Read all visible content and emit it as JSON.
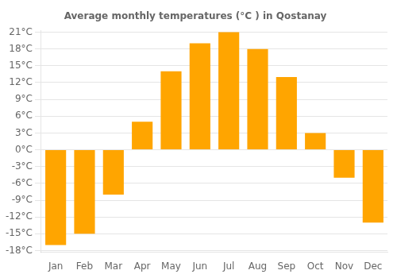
{
  "chart_data": {
    "type": "bar",
    "title": "Average monthly temperatures (°C ) in Qostanay",
    "categories": [
      "Jan",
      "Feb",
      "Mar",
      "Apr",
      "May",
      "Jun",
      "Jul",
      "Aug",
      "Sep",
      "Oct",
      "Nov",
      "Dec"
    ],
    "values": [
      -17,
      -15,
      -8,
      5,
      14,
      19,
      21,
      18,
      13,
      3,
      -5,
      -13
    ],
    "color": "#FFA500",
    "ylim": [
      -18.3,
      21.3
    ],
    "yticks": [
      {
        "value": -18,
        "label": "-18°C"
      },
      {
        "value": -15,
        "label": "-15°C"
      },
      {
        "value": -12,
        "label": "-12°C"
      },
      {
        "value": -9,
        "label": "-9°C"
      },
      {
        "value": -6,
        "label": "-6°C"
      },
      {
        "value": -3,
        "label": "-3°C"
      },
      {
        "value": 0,
        "label": "0°C"
      },
      {
        "value": 3,
        "label": "3°C"
      },
      {
        "value": 6,
        "label": "6°C"
      },
      {
        "value": 9,
        "label": "9°C"
      },
      {
        "value": 12,
        "label": "12°C"
      },
      {
        "value": 15,
        "label": "15°C"
      },
      {
        "value": 18,
        "label": "18°C"
      },
      {
        "value": 21,
        "label": "21°C"
      }
    ],
    "grid": true
  }
}
